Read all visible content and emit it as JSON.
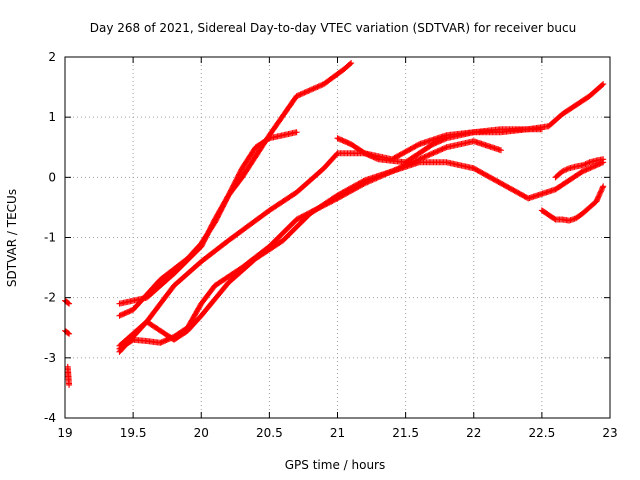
{
  "chart_data": {
    "type": "scatter",
    "title": "Day 268 of 2021, Sidereal Day-to-day VTEC variation (SDTVAR) for receiver bucu",
    "xlabel": "GPS time / hours",
    "ylabel": "SDTVAR / TECUs",
    "xlim": [
      19,
      23
    ],
    "ylim": [
      -4,
      2
    ],
    "xticks": [
      19,
      19.5,
      20,
      20.5,
      21,
      21.5,
      22,
      22.5,
      23
    ],
    "yticks": [
      -4,
      -3,
      -2,
      -1,
      0,
      1,
      2
    ],
    "xtick_labels": [
      "19",
      "19.5",
      "20",
      "20.5",
      "21",
      "21.5",
      "22",
      "22.5",
      "23"
    ],
    "ytick_labels": [
      "-4",
      "-3",
      "-2",
      "-1",
      "0",
      "1",
      "2"
    ],
    "grid": true,
    "marker": "plus",
    "color": "#ff0000",
    "series": [
      {
        "name": "s1",
        "x": [
          19.0,
          19.03
        ],
        "y": [
          -2.05,
          -2.1
        ]
      },
      {
        "name": "s2",
        "x": [
          19.0,
          19.03
        ],
        "y": [
          -2.55,
          -2.6
        ]
      },
      {
        "name": "s3",
        "x": [
          19.02,
          19.03
        ],
        "y": [
          -3.15,
          -3.45
        ]
      },
      {
        "name": "s4",
        "x": [
          19.4,
          19.6,
          19.8,
          20.0,
          20.1,
          20.2,
          20.3,
          20.5,
          20.7,
          20.9,
          21.05,
          21.1
        ],
        "y": [
          -2.1,
          -2.0,
          -1.6,
          -1.15,
          -0.7,
          -0.3,
          0.0,
          0.7,
          1.35,
          1.55,
          1.8,
          1.9
        ]
      },
      {
        "name": "s5",
        "x": [
          19.4,
          19.5,
          19.7,
          19.9,
          20.0,
          20.1,
          20.2,
          20.3,
          20.4,
          20.5,
          20.7
        ],
        "y": [
          -2.3,
          -2.2,
          -1.7,
          -1.35,
          -1.1,
          -0.75,
          -0.3,
          0.15,
          0.5,
          0.65,
          0.75
        ]
      },
      {
        "name": "s6",
        "x": [
          19.4,
          19.6,
          19.8,
          20.0,
          20.2,
          20.5,
          20.7,
          20.9,
          21.0,
          21.2,
          21.4,
          21.6,
          21.8,
          22.0,
          22.2,
          22.4,
          22.55,
          22.65,
          22.75,
          22.85,
          22.95
        ],
        "y": [
          -2.9,
          -2.4,
          -1.8,
          -1.4,
          -1.05,
          -0.55,
          -0.25,
          0.15,
          0.4,
          0.4,
          0.3,
          0.55,
          0.7,
          0.75,
          0.8,
          0.8,
          0.85,
          1.05,
          1.2,
          1.35,
          1.55
        ]
      },
      {
        "name": "s7",
        "x": [
          19.4,
          19.5,
          19.6,
          19.7,
          19.8,
          19.9,
          20.0,
          20.1,
          20.3,
          20.5,
          20.7,
          21.0,
          21.2,
          21.4,
          21.6,
          21.8,
          22.0,
          22.2,
          22.4,
          22.6,
          22.8,
          22.95
        ],
        "y": [
          -2.85,
          -2.7,
          -2.72,
          -2.75,
          -2.65,
          -2.5,
          -2.1,
          -1.8,
          -1.5,
          -1.15,
          -0.7,
          -0.35,
          -0.1,
          0.1,
          0.25,
          0.25,
          0.15,
          -0.1,
          -0.35,
          -0.2,
          0.1,
          0.25
        ]
      },
      {
        "name": "s8",
        "x": [
          19.4,
          19.6,
          19.8,
          19.9,
          20.0,
          20.2,
          20.4,
          20.6,
          20.8,
          21.0,
          21.2,
          21.4,
          21.6,
          21.8,
          22.0,
          22.2
        ],
        "y": [
          -2.8,
          -2.4,
          -2.7,
          -2.55,
          -2.3,
          -1.75,
          -1.35,
          -1.05,
          -0.6,
          -0.3,
          -0.05,
          0.1,
          0.3,
          0.5,
          0.6,
          0.45
        ]
      },
      {
        "name": "s9",
        "x": [
          21.0,
          21.1,
          21.2,
          21.3,
          21.5,
          21.7,
          21.8,
          22.0,
          22.2,
          22.4,
          22.5
        ],
        "y": [
          0.65,
          0.55,
          0.4,
          0.3,
          0.25,
          0.55,
          0.65,
          0.75,
          0.75,
          0.8,
          0.8
        ]
      },
      {
        "name": "s10",
        "x": [
          22.5,
          22.6,
          22.65,
          22.7,
          22.75,
          22.8,
          22.85,
          22.9,
          22.95
        ],
        "y": [
          -0.55,
          -0.7,
          -0.7,
          -0.72,
          -0.68,
          -0.6,
          -0.5,
          -0.4,
          -0.15
        ]
      },
      {
        "name": "s11",
        "x": [
          22.6,
          22.65,
          22.7,
          22.75,
          22.8,
          22.85,
          22.9,
          22.95
        ],
        "y": [
          0.0,
          0.1,
          0.15,
          0.18,
          0.2,
          0.25,
          0.28,
          0.3
        ]
      }
    ]
  }
}
